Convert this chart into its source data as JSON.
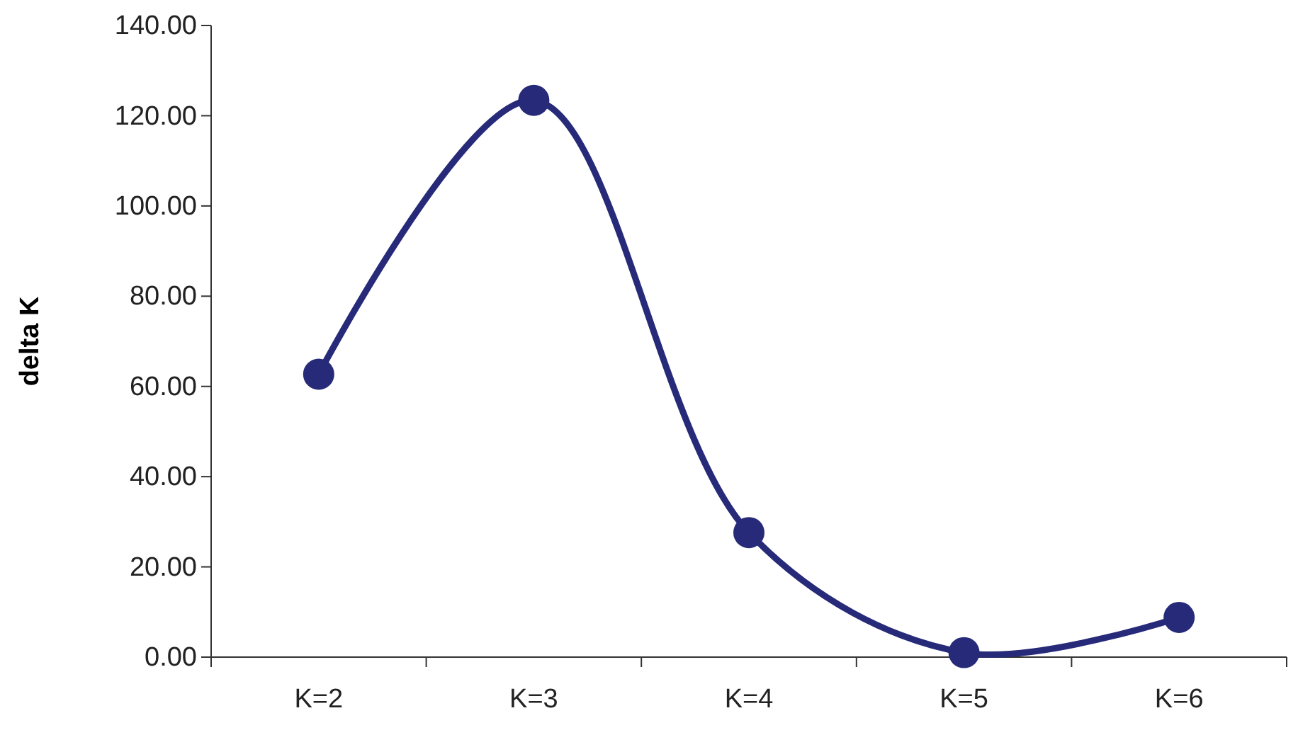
{
  "chart_data": {
    "type": "line",
    "ylabel": "delta K",
    "categories": [
      "K=2",
      "K=3",
      "K=4",
      "K=5",
      "K=6"
    ],
    "series": [
      {
        "color": "#262a78",
        "values": [
          62.7,
          123.4,
          27.6,
          1.0,
          8.8
        ]
      }
    ],
    "ylim": [
      0,
      140
    ],
    "yticks": [
      {
        "value": 0,
        "label": "0.00"
      },
      {
        "value": 20,
        "label": "20.00"
      },
      {
        "value": 40,
        "label": "40.00"
      },
      {
        "value": 60,
        "label": "60.00"
      },
      {
        "value": 80,
        "label": "80.00"
      },
      {
        "value": 100,
        "label": "100.00"
      },
      {
        "value": 120,
        "label": "120.00"
      },
      {
        "value": 140,
        "label": "140.00"
      }
    ],
    "marker": "circle"
  }
}
